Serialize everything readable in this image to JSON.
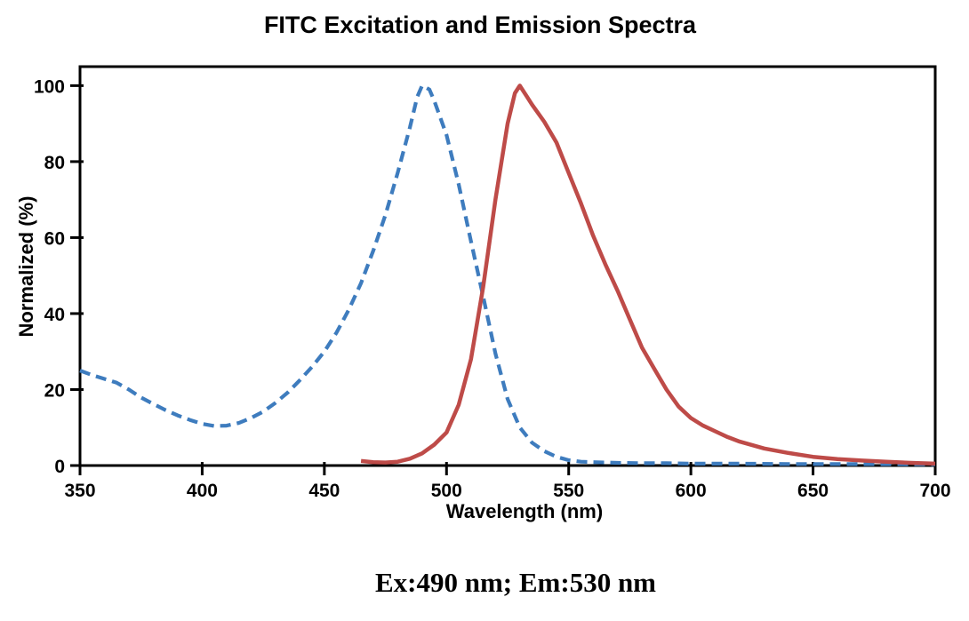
{
  "chart_data": {
    "type": "line",
    "title": "FITC Excitation and Emission Spectra",
    "xlabel": "Wavelength (nm)",
    "ylabel": "Normalized (%)",
    "annotation": "Ex:490 nm; Em:530 nm",
    "xlim": [
      350,
      700
    ],
    "ylim": [
      0,
      105
    ],
    "x_ticks": [
      350,
      400,
      450,
      500,
      550,
      600,
      650,
      700
    ],
    "y_ticks": [
      0,
      20,
      40,
      60,
      80,
      100
    ],
    "grid": false,
    "legend_position": "none",
    "axis_color": "#000000",
    "background_color": "#ffffff",
    "series": [
      {
        "name": "Excitation",
        "color": "#3e7cbe",
        "line_style": "dashed",
        "x": [
          350,
          355,
          360,
          365,
          370,
          375,
          380,
          385,
          390,
          395,
          400,
          405,
          410,
          415,
          420,
          425,
          430,
          435,
          440,
          445,
          450,
          455,
          460,
          465,
          470,
          475,
          480,
          485,
          488,
          490,
          493,
          495,
          500,
          505,
          510,
          515,
          520,
          525,
          530,
          535,
          540,
          545,
          550,
          555,
          560,
          570,
          580,
          590,
          600,
          620,
          640,
          660,
          680,
          700
        ],
        "y": [
          25,
          23.8,
          22.8,
          21.8,
          20,
          17.9,
          16.2,
          14.6,
          13.2,
          12,
          11,
          10.4,
          10.5,
          11.2,
          12.5,
          14.2,
          16.5,
          19.2,
          22.5,
          26,
          30,
          35,
          41,
          48,
          56.5,
          66,
          77,
          89,
          97,
          100,
          99,
          96,
          87,
          74,
          59,
          44.5,
          29.5,
          17.5,
          10,
          6,
          3.8,
          2.3,
          1.4,
          1,
          0.9,
          0.7,
          0.6,
          0.6,
          0.5,
          0.5,
          0.4,
          0.4,
          0.35,
          0.3
        ]
      },
      {
        "name": "Emission",
        "color": "#be4b48",
        "line_style": "solid",
        "x": [
          465,
          470,
          475,
          480,
          485,
          490,
          495,
          500,
          505,
          510,
          515,
          520,
          525,
          528,
          530,
          533,
          535,
          540,
          545,
          550,
          555,
          560,
          565,
          570,
          575,
          580,
          585,
          590,
          595,
          600,
          605,
          610,
          615,
          620,
          630,
          640,
          650,
          660,
          670,
          680,
          690,
          700
        ],
        "y": [
          1.2,
          0.9,
          0.8,
          1,
          1.8,
          3.2,
          5.5,
          8.7,
          16,
          28,
          47,
          70,
          90,
          98,
          100,
          97,
          95,
          90.5,
          85,
          77,
          69,
          60.5,
          53,
          46,
          38.5,
          31,
          25.5,
          20,
          15.5,
          12.5,
          10.5,
          9,
          7.5,
          6.3,
          4.5,
          3.3,
          2.3,
          1.7,
          1.3,
          1,
          0.7,
          0.5
        ]
      }
    ]
  }
}
